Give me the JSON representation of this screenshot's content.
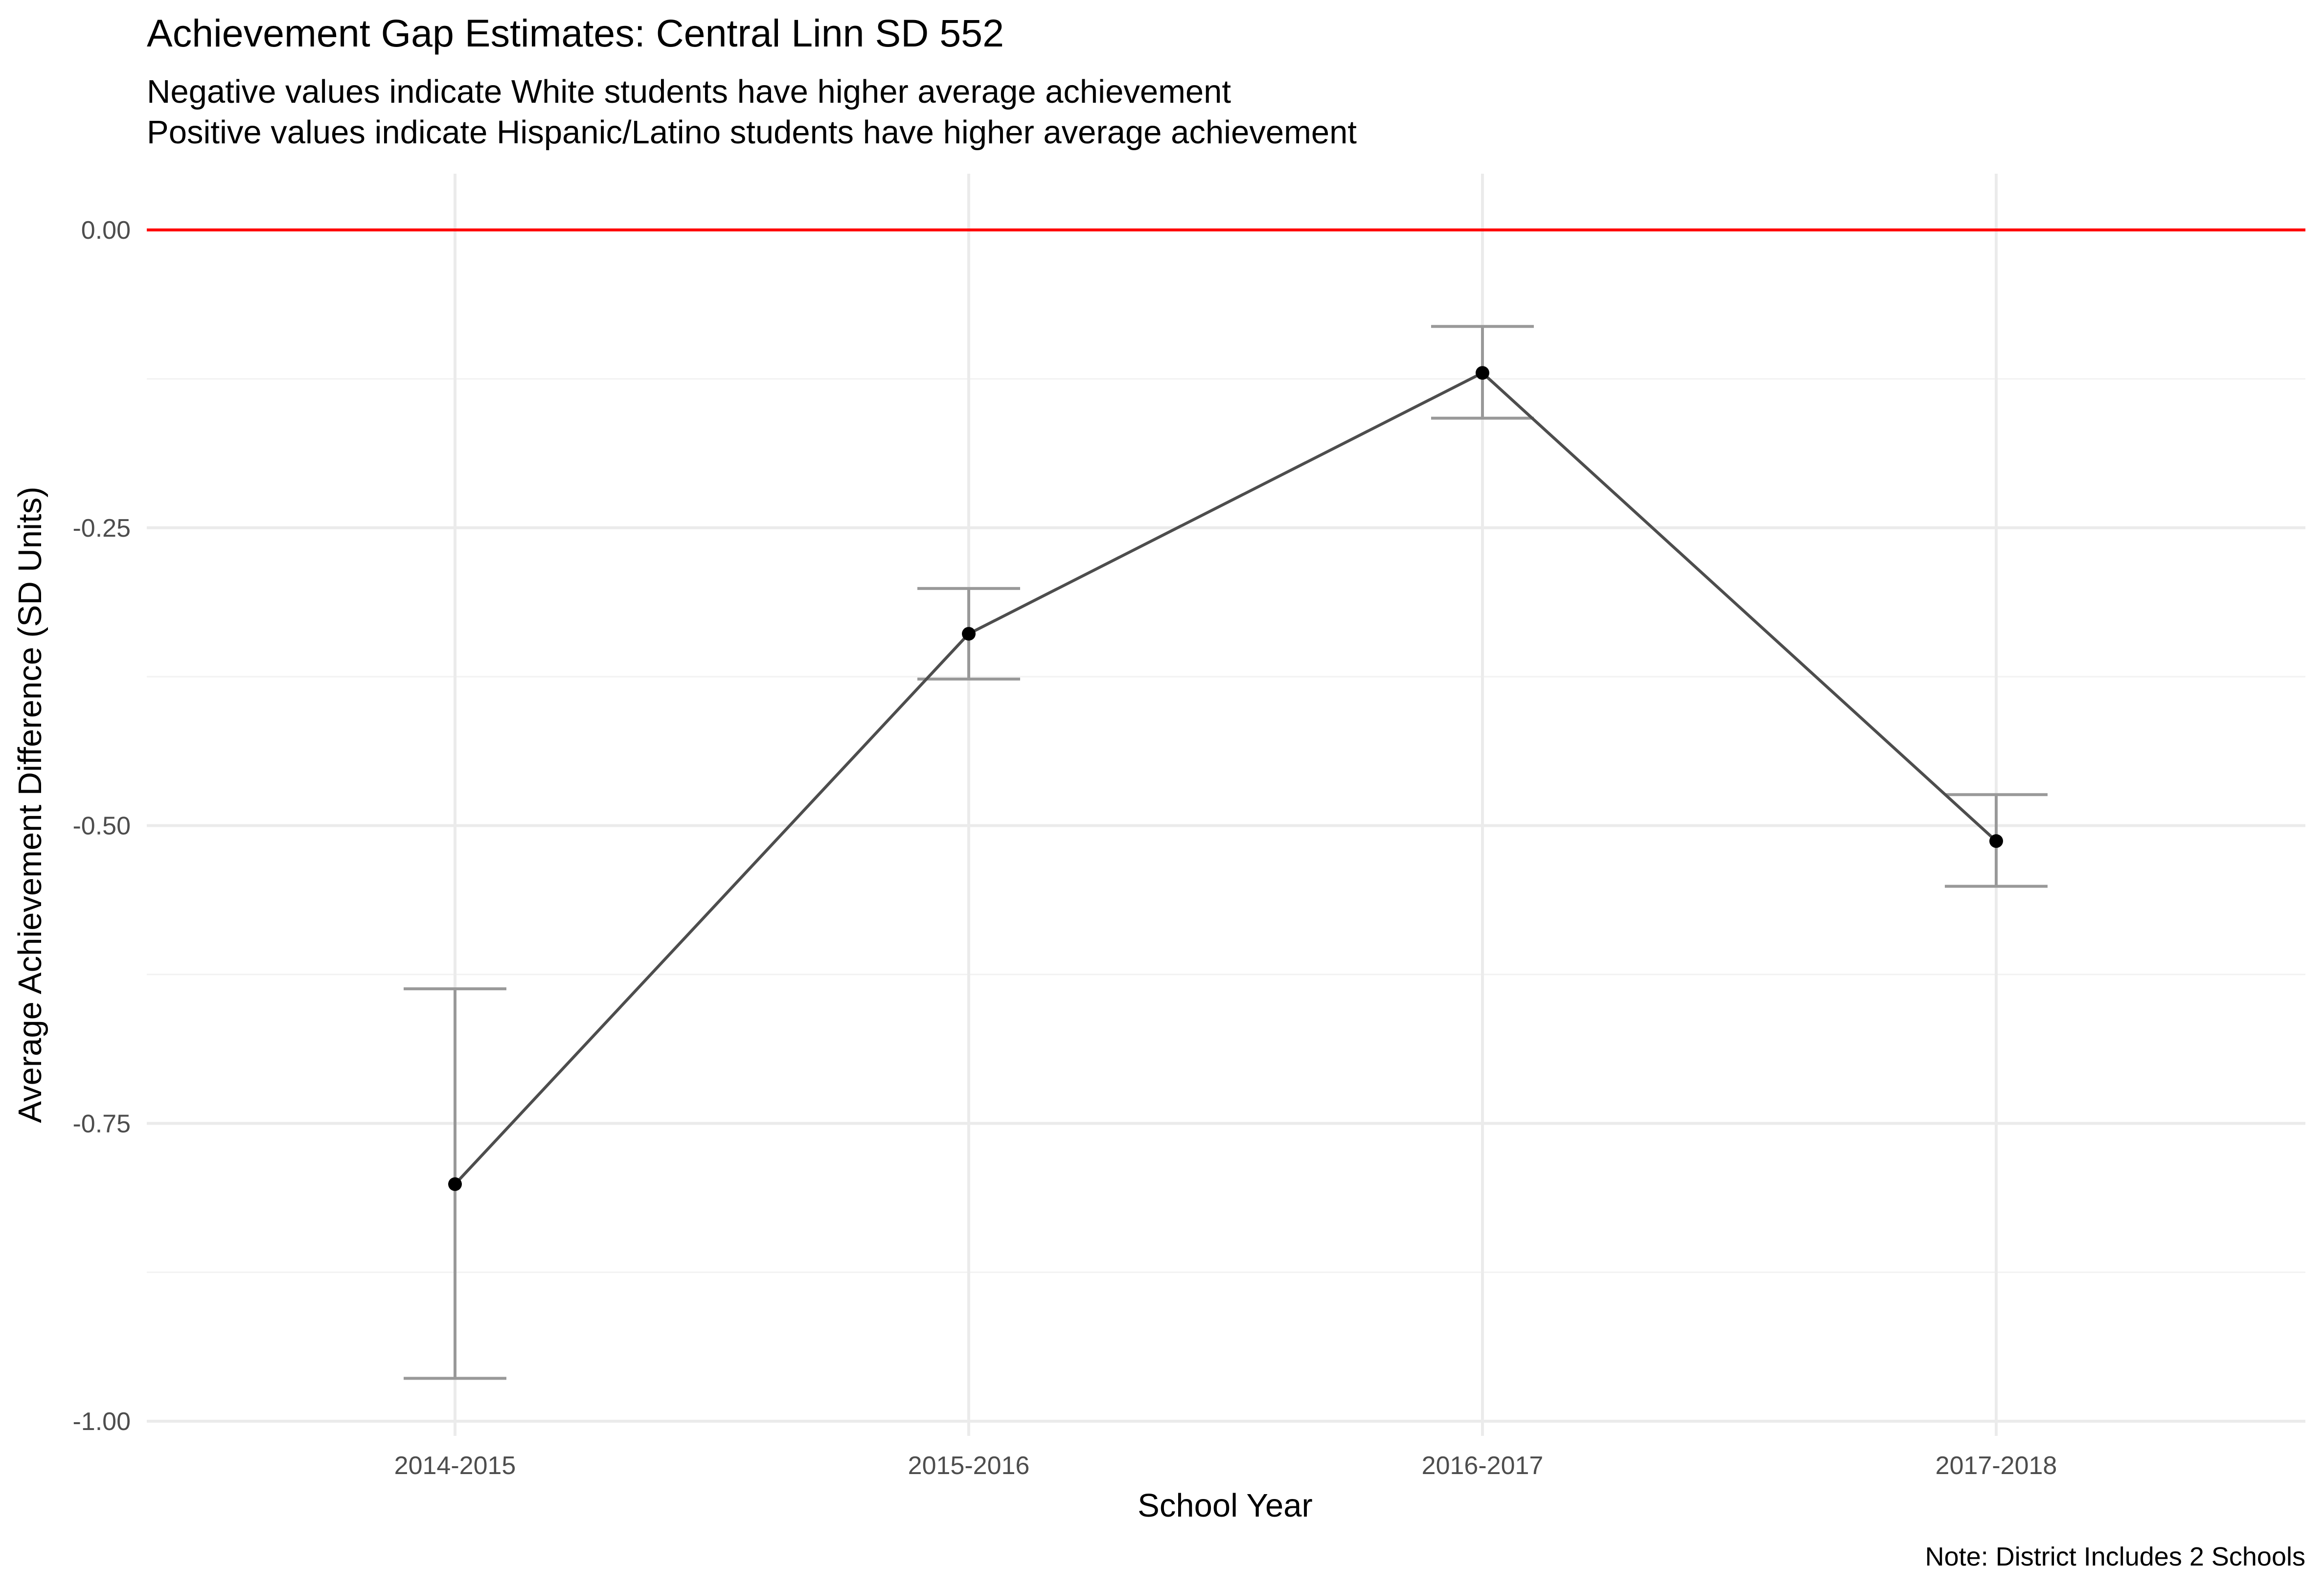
{
  "chart_data": {
    "type": "line",
    "title": "Achievement Gap Estimates: Central Linn SD 552",
    "subtitle_lines": [
      "Negative values indicate White students have higher average achievement",
      "Positive values indicate Hispanic/Latino students have higher average achievement"
    ],
    "xlabel": "School Year",
    "ylabel": "Average Achievement Difference (SD Units)",
    "caption": "Note: District Includes 2 Schools",
    "categories": [
      "2014-2015",
      "2015-2016",
      "2016-2017",
      "2017-2018"
    ],
    "series": [
      {
        "values": [
          -0.801,
          -0.339,
          -0.12,
          -0.513
        ],
        "error_lower": [
          -0.964,
          -0.377,
          -0.158,
          -0.551
        ],
        "error_upper": [
          -0.637,
          -0.301,
          -0.081,
          -0.474
        ]
      }
    ],
    "reference_line": {
      "y": 0.0,
      "color": "#ff0000"
    },
    "ylim": [
      -1.05,
      0.05
    ],
    "yticks": [
      -1.0,
      -0.75,
      -0.5,
      -0.25,
      0.0
    ],
    "ytick_labels": [
      "-1.00",
      "-0.75",
      "-0.50",
      "-0.25",
      "0.00"
    ],
    "grid": true,
    "legend": "none",
    "colors": {
      "line": "#4d4d4d",
      "points": "#000000",
      "errorbars": "#999999",
      "grid_major": "#ebebeb",
      "grid_minor": "#f2f2f2"
    }
  }
}
